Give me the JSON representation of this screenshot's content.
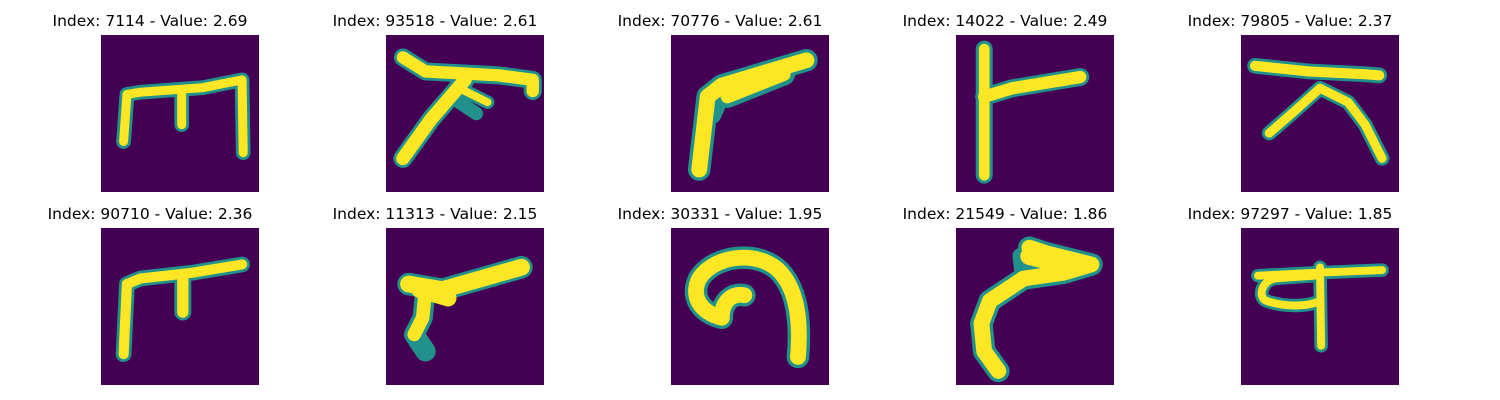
{
  "panels": [
    {
      "title": "Index: 7114 - Value: 2.69",
      "glyph": "glyph-1"
    },
    {
      "title": "Index: 93518 - Value: 2.61",
      "glyph": "glyph-2"
    },
    {
      "title": "Index: 70776 - Value: 2.61",
      "glyph": "glyph-3"
    },
    {
      "title": "Index: 14022 - Value: 2.49",
      "glyph": "glyph-4"
    },
    {
      "title": "Index: 79805 - Value: 2.37",
      "glyph": "glyph-5"
    },
    {
      "title": "Index: 90710 - Value: 2.36",
      "glyph": "glyph-6"
    },
    {
      "title": "Index: 11313 - Value: 2.15",
      "glyph": "glyph-7"
    },
    {
      "title": "Index: 30331 - Value: 1.95",
      "glyph": "glyph-8"
    },
    {
      "title": "Index: 21549 - Value: 1.86",
      "glyph": "glyph-9"
    },
    {
      "title": "Index: 97297 - Value: 1.85",
      "glyph": "glyph-10"
    }
  ],
  "colors": {
    "background": "#440154",
    "stroke": "#fde725",
    "edge": "#21918c"
  }
}
